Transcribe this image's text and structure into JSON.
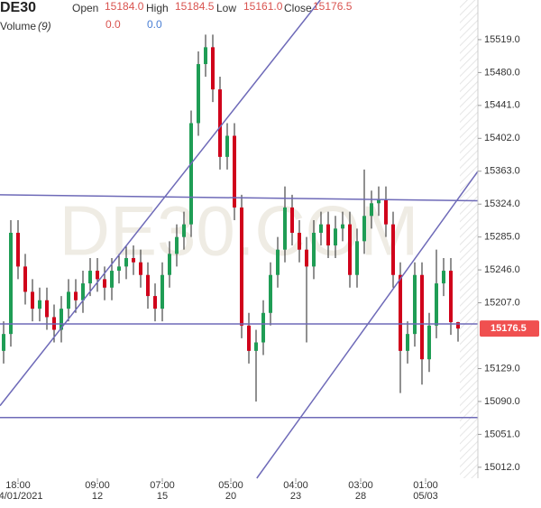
{
  "chart_data": {
    "type": "candlestick",
    "header": {
      "symbol": "DE30",
      "open_label": "Open",
      "open": "15184.0",
      "high_label": "High",
      "high": "15184.5",
      "low_label": "Low",
      "low": "15161.0",
      "close_label": "Close",
      "close": "15176.5",
      "volume_label": "Volume",
      "volume_param": "(9)",
      "volume_a": "0.0",
      "volume_b": "0.0"
    },
    "watermark": "DE30.COM",
    "up_color": "#1f9d55",
    "down_color": "#d0021b",
    "line_color": "#6e6ab8",
    "open": [
      15150,
      15170,
      15290,
      15250,
      15220,
      15200,
      15210,
      15190,
      15175,
      15200,
      15220,
      15210,
      15230,
      15245,
      15235,
      15225,
      15245,
      15250,
      15260,
      15255,
      15240,
      15215,
      15200,
      15240,
      15265,
      15285,
      15300,
      15420,
      15490,
      15510,
      15460,
      15380,
      15405,
      15320,
      15180,
      15150,
      15160,
      15195,
      15240,
      15270,
      15320,
      15290,
      15270,
      15250,
      15290,
      15300,
      15275,
      15295,
      15300,
      15240,
      15280,
      15310,
      15325,
      15330,
      15300,
      15240,
      15150,
      15170,
      15240,
      15140,
      15180,
      15230,
      15245,
      15184.0
    ],
    "high": [
      15185,
      15305,
      15305,
      15265,
      15235,
      15225,
      15225,
      15205,
      15215,
      15235,
      15235,
      15245,
      15260,
      15260,
      15250,
      15260,
      15265,
      15275,
      15275,
      15270,
      15255,
      15230,
      15255,
      15280,
      15300,
      15315,
      15435,
      15505,
      15525,
      15525,
      15475,
      15420,
      15420,
      15335,
      15195,
      15175,
      15210,
      15255,
      15285,
      15345,
      15335,
      15305,
      15285,
      15305,
      15315,
      15315,
      15310,
      15315,
      15315,
      15295,
      15365,
      15340,
      15345,
      15345,
      15315,
      15255,
      15185,
      15255,
      15255,
      15195,
      15270,
      15260,
      15260,
      15184.5
    ],
    "low": [
      15135,
      15155,
      15235,
      15205,
      15185,
      15185,
      15175,
      15160,
      15160,
      15185,
      15195,
      15195,
      15215,
      15220,
      15210,
      15210,
      15230,
      15235,
      15240,
      15225,
      15200,
      15185,
      15185,
      15225,
      15250,
      15270,
      15285,
      15405,
      15475,
      15445,
      15365,
      15365,
      15305,
      15165,
      15135,
      15090,
      15145,
      15180,
      15225,
      15255,
      15275,
      15255,
      15160,
      15235,
      15275,
      15260,
      15260,
      15280,
      15225,
      15225,
      15265,
      15295,
      15310,
      15285,
      15225,
      15100,
      15135,
      15155,
      15110,
      15125,
      15165,
      15215,
      15169,
      15161.0
    ],
    "close": [
      15170,
      15290,
      15250,
      15220,
      15200,
      15210,
      15190,
      15175,
      15200,
      15220,
      15210,
      15230,
      15245,
      15235,
      15225,
      15245,
      15250,
      15260,
      15255,
      15240,
      15215,
      15200,
      15240,
      15265,
      15285,
      15300,
      15420,
      15490,
      15510,
      15460,
      15380,
      15405,
      15320,
      15180,
      15150,
      15160,
      15195,
      15240,
      15270,
      15320,
      15290,
      15270,
      15250,
      15290,
      15300,
      15275,
      15295,
      15300,
      15240,
      15280,
      15310,
      15325,
      15330,
      15300,
      15240,
      15150,
      15170,
      15240,
      15140,
      15180,
      15230,
      15245,
      15184,
      15176.5
    ],
    "xlim": [
      -0.5,
      65.75
    ],
    "ylim": [
      14999,
      15566
    ],
    "yticks": [
      {
        "value": 15519,
        "label": "15519.0"
      },
      {
        "value": 15480,
        "label": "15480.0"
      },
      {
        "value": 15441,
        "label": "15441.0"
      },
      {
        "value": 15402,
        "label": "15402.0"
      },
      {
        "value": 15363,
        "label": "15363.0"
      },
      {
        "value": 15324,
        "label": "15324.0"
      },
      {
        "value": 15285,
        "label": "15285.0"
      },
      {
        "value": 15246,
        "label": "15246.0"
      },
      {
        "value": 15207,
        "label": "15207.0"
      },
      {
        "value": 15129,
        "label": "15129.0"
      },
      {
        "value": 15090,
        "label": "15090.0"
      },
      {
        "value": 15051,
        "label": "15051.0"
      },
      {
        "value": 15012,
        "label": "15012.0"
      }
    ],
    "xticks": [
      {
        "value": 2,
        "label": "18:00"
      },
      {
        "value": 13,
        "label": "09:00"
      },
      {
        "value": 22,
        "label": "07:00"
      },
      {
        "value": 31.5,
        "label": "05:00"
      },
      {
        "value": 40.5,
        "label": "04:00"
      },
      {
        "value": 49.5,
        "label": "03:00"
      },
      {
        "value": 58.5,
        "label": "01:00"
      }
    ],
    "xtick_dates": [
      "04/01/2021",
      "12",
      "15",
      "20",
      "23",
      "28",
      "05/03"
    ],
    "trend_lines": [
      [
        [
          -0.5,
          15085
        ],
        [
          43.9,
          15566
        ]
      ],
      [
        [
          35.1,
          14999
        ],
        [
          65.75,
          15363
        ]
      ],
      [
        [
          -0.5,
          15335
        ],
        [
          65.75,
          15328
        ]
      ],
      [
        [
          -0.5,
          15182
        ],
        [
          65.75,
          15182
        ]
      ],
      [
        [
          -0.5,
          15071
        ],
        [
          65.75,
          15071
        ]
      ]
    ],
    "last_price": {
      "value": 15176.5,
      "label": "15176.5"
    }
  }
}
